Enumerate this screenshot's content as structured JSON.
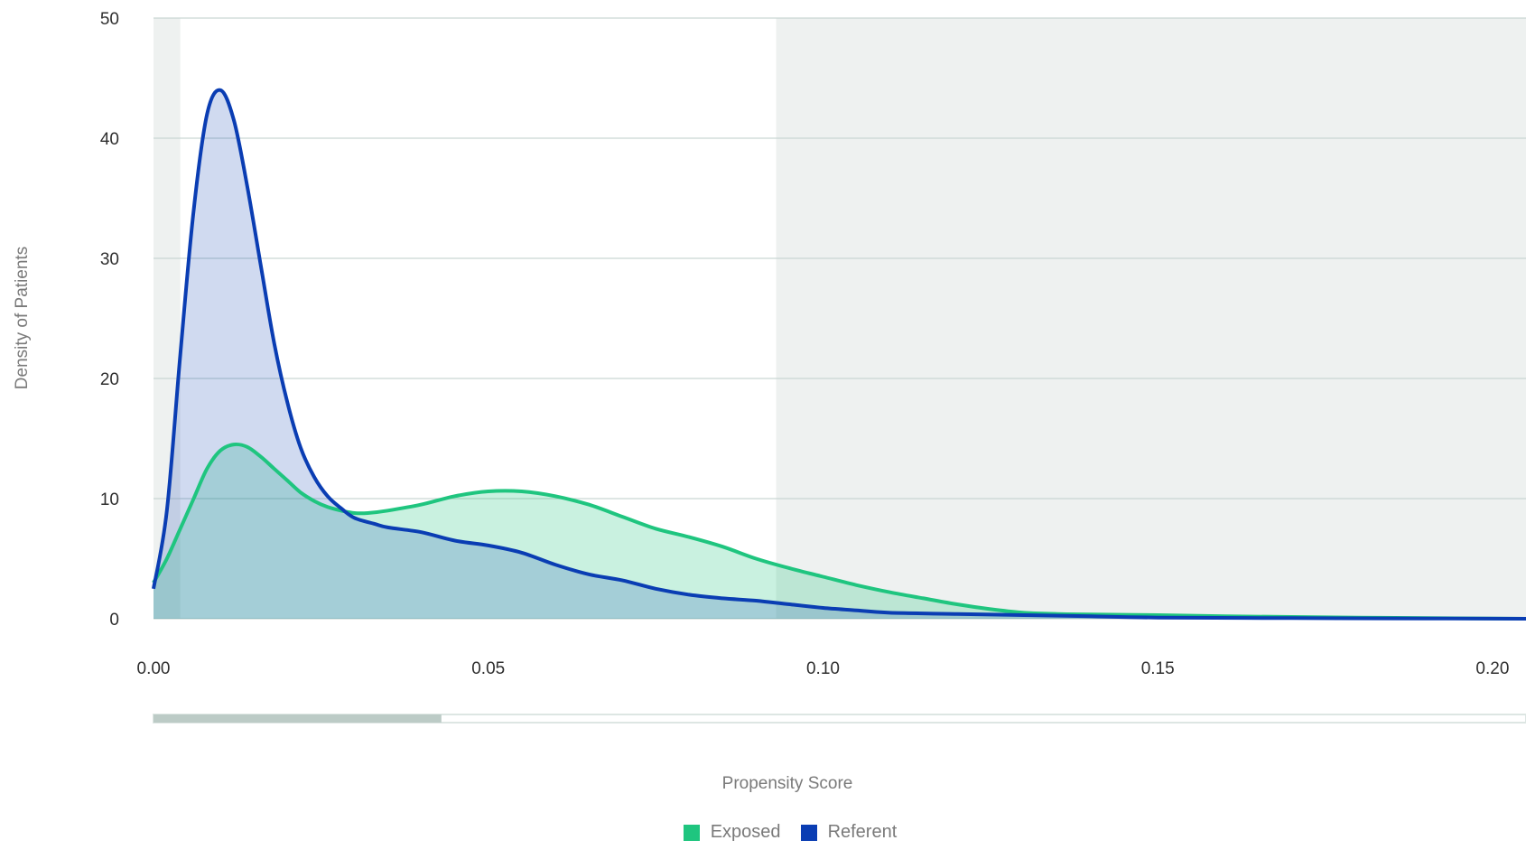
{
  "chart_data": {
    "type": "area",
    "xlabel": "Propensity Score",
    "ylabel": "Density of Patients",
    "xlim": [
      0.0,
      0.205
    ],
    "ylim": [
      0,
      50
    ],
    "x_ticks": [
      "0.00",
      "0.05",
      "0.10",
      "0.15",
      "0.20"
    ],
    "y_ticks": [
      "0",
      "10",
      "20",
      "30",
      "40",
      "50"
    ],
    "grid": "horizontal",
    "legend_position": "bottom-center",
    "shaded_regions": [
      {
        "x_start": 0.0,
        "x_end": 0.004
      },
      {
        "x_start": 0.093,
        "x_end": 0.205
      }
    ],
    "range_slider": {
      "start": 0.0,
      "end": 0.043
    },
    "series": [
      {
        "name": "Exposed",
        "color": "#1fc57f",
        "x": [
          0.0,
          0.002,
          0.004,
          0.006,
          0.008,
          0.01,
          0.012,
          0.014,
          0.016,
          0.018,
          0.02,
          0.022,
          0.024,
          0.026,
          0.028,
          0.03,
          0.032,
          0.035,
          0.04,
          0.045,
          0.05,
          0.055,
          0.06,
          0.065,
          0.07,
          0.075,
          0.08,
          0.085,
          0.09,
          0.095,
          0.1,
          0.105,
          0.11,
          0.115,
          0.12,
          0.125,
          0.13,
          0.135,
          0.14,
          0.15,
          0.16,
          0.17,
          0.18,
          0.19,
          0.205
        ],
        "y": [
          3.0,
          5.0,
          7.5,
          10.0,
          12.5,
          14.0,
          14.5,
          14.3,
          13.5,
          12.5,
          11.5,
          10.5,
          9.8,
          9.3,
          9.0,
          8.8,
          8.8,
          9.0,
          9.5,
          10.2,
          10.6,
          10.6,
          10.2,
          9.5,
          8.5,
          7.5,
          6.8,
          6.0,
          5.0,
          4.2,
          3.5,
          2.8,
          2.2,
          1.7,
          1.2,
          0.8,
          0.5,
          0.4,
          0.35,
          0.3,
          0.2,
          0.15,
          0.1,
          0.05,
          0.0
        ]
      },
      {
        "name": "Referent",
        "color": "#0a3db3",
        "x": [
          0.0,
          0.002,
          0.004,
          0.006,
          0.008,
          0.01,
          0.012,
          0.014,
          0.016,
          0.018,
          0.02,
          0.022,
          0.024,
          0.026,
          0.028,
          0.03,
          0.033,
          0.035,
          0.04,
          0.045,
          0.05,
          0.055,
          0.06,
          0.065,
          0.07,
          0.075,
          0.08,
          0.085,
          0.09,
          0.095,
          0.1,
          0.105,
          0.11,
          0.12,
          0.13,
          0.14,
          0.15,
          0.17,
          0.19,
          0.205
        ],
        "y": [
          2.5,
          9.0,
          22.0,
          34.0,
          42.0,
          44.0,
          41.5,
          36.0,
          29.5,
          23.0,
          18.0,
          14.2,
          11.8,
          10.2,
          9.2,
          8.4,
          7.9,
          7.6,
          7.2,
          6.5,
          6.1,
          5.5,
          4.5,
          3.7,
          3.2,
          2.5,
          2.0,
          1.7,
          1.5,
          1.2,
          0.9,
          0.7,
          0.5,
          0.4,
          0.3,
          0.2,
          0.1,
          0.05,
          0.02,
          0.0
        ]
      }
    ]
  }
}
